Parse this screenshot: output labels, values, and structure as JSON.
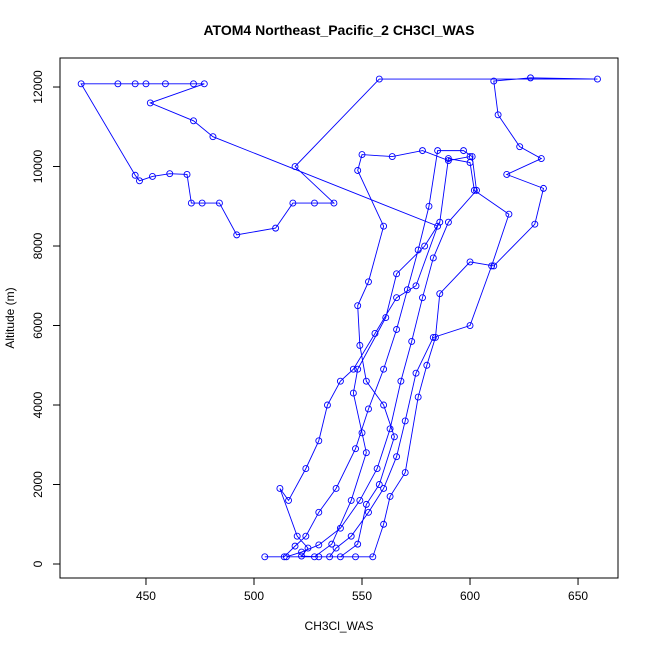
{
  "chart_data": {
    "type": "line",
    "title": "ATOM4 Northeast_Pacific_2 CH3Cl_WAS",
    "x_label": "CH3Cl_WAS",
    "y_label": "Altitude (m)",
    "color": "#0000ff",
    "x": [
      505,
      514,
      519,
      524,
      530,
      538,
      547,
      553,
      560,
      566,
      571,
      576,
      581,
      585,
      597,
      601,
      603,
      590,
      583,
      578,
      573,
      568,
      563,
      557,
      549,
      540,
      530,
      522,
      515,
      528,
      536,
      545,
      552,
      550,
      546,
      548,
      561,
      566,
      579,
      586,
      590,
      600,
      602,
      618,
      610,
      600,
      583,
      575,
      570,
      566,
      560,
      553,
      545,
      538,
      535,
      547,
      555,
      560,
      563,
      570,
      576,
      580,
      584,
      586,
      600,
      611,
      630,
      634,
      617,
      633,
      623,
      613,
      611,
      628,
      659,
      558,
      519,
      537,
      528,
      518,
      510,
      492,
      484,
      476,
      471,
      469,
      461,
      453,
      447,
      445,
      420,
      437,
      445,
      450,
      459,
      472,
      477,
      452,
      472,
      481,
      585,
      575,
      566,
      556,
      546,
      540,
      534,
      530,
      524,
      516,
      512,
      520,
      525,
      522,
      530,
      540,
      548,
      552,
      558,
      565,
      560,
      552,
      549,
      548,
      553,
      560,
      548,
      550,
      564,
      578,
      590,
      600
    ],
    "values": [
      180,
      180,
      450,
      700,
      1300,
      1900,
      2900,
      3900,
      4900,
      5900,
      6900,
      7900,
      9000,
      10400,
      10400,
      10250,
      9400,
      8600,
      7700,
      6700,
      5600,
      4600,
      3400,
      2400,
      1600,
      900,
      480,
      300,
      180,
      180,
      500,
      1600,
      2800,
      3300,
      4300,
      4900,
      6200,
      7300,
      8000,
      8600,
      10200,
      10100,
      9400,
      8800,
      7500,
      6000,
      5700,
      4800,
      3600,
      2700,
      1900,
      1300,
      700,
      400,
      180,
      180,
      180,
      1000,
      1700,
      2300,
      4200,
      5000,
      5700,
      6800,
      7600,
      7500,
      8550,
      9450,
      9800,
      10200,
      10500,
      11300,
      12150,
      12230,
      12200,
      12200,
      10000,
      9080,
      9080,
      9080,
      8450,
      8280,
      9080,
      9080,
      9080,
      9800,
      9820,
      9750,
      9640,
      9780,
      12080,
      12080,
      12080,
      12080,
      12080,
      12080,
      12080,
      11600,
      11150,
      10750,
      8500,
      7000,
      6700,
      5800,
      4900,
      4600,
      4000,
      3100,
      2400,
      1600,
      1900,
      700,
      400,
      200,
      180,
      180,
      500,
      1500,
      2000,
      3200,
      4000,
      4600,
      5500,
      6500,
      7100,
      8500,
      9900,
      10300,
      10250,
      10400,
      10150,
      10250
    ],
    "xlim": [
      410.2,
      668.5
    ],
    "ylim": [
      -352,
      12730
    ],
    "xticks": [
      450,
      500,
      550,
      600,
      650
    ],
    "yticks": [
      0,
      2000,
      4000,
      6000,
      8000,
      10000,
      12000
    ]
  }
}
